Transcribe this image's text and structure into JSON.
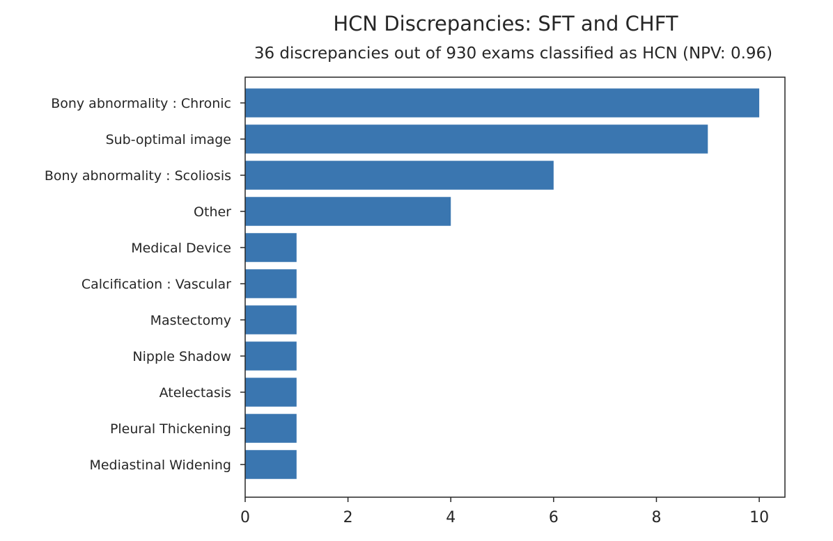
{
  "chart_data": {
    "type": "bar",
    "orientation": "horizontal",
    "title": "HCN Discrepancies: SFT and CHFT",
    "subtitle": "36 discrepancies out of 930 exams classified as HCN (NPV: 0.96)",
    "xlabel": "",
    "ylabel": "",
    "categories": [
      "Bony abnormality : Chronic",
      "Sub-optimal image",
      "Bony abnormality : Scoliosis",
      "Other",
      "Medical Device",
      "Calcification : Vascular",
      "Mastectomy",
      "Nipple Shadow",
      "Atelectasis",
      "Pleural Thickening",
      "Mediastinal Widening"
    ],
    "values": [
      10,
      9,
      6,
      4,
      1,
      1,
      1,
      1,
      1,
      1,
      1
    ],
    "xlim": [
      0,
      10.5
    ],
    "x_ticks": [
      "0",
      "2",
      "4",
      "6",
      "8",
      "10"
    ],
    "bar_color": "#3a76b0",
    "grid": false,
    "legend": "none"
  }
}
